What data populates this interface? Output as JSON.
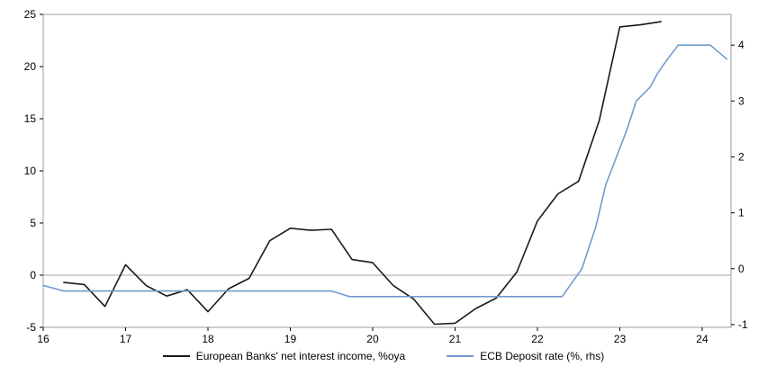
{
  "chart_data": {
    "type": "line",
    "title": "",
    "xlabel": "",
    "ylabel_left": "",
    "ylabel_right": "",
    "grid": false,
    "zero_line": true,
    "legend_position": "bottom",
    "x_axis": {
      "min": 16,
      "max": 24.35,
      "ticks": [
        16,
        17,
        18,
        19,
        20,
        21,
        22,
        23,
        24
      ]
    },
    "left_axis": {
      "min": -5,
      "max": 25,
      "ticks": [
        -5,
        0,
        5,
        10,
        15,
        20,
        25
      ]
    },
    "right_axis": {
      "min": -1.05,
      "max": 4.55,
      "ticks": [
        -1,
        0,
        1,
        2,
        3,
        4
      ]
    },
    "series": [
      {
        "name": "European Banks' net interest income, %oya",
        "axis": "left",
        "color": "#1a1a1a",
        "width": 1.6,
        "x": [
          16.25,
          16.5,
          16.75,
          17.0,
          17.25,
          17.5,
          17.75,
          18.0,
          18.25,
          18.5,
          18.75,
          19.0,
          19.25,
          19.5,
          19.75,
          20.0,
          20.25,
          20.5,
          20.75,
          21.0,
          21.25,
          21.5,
          21.75,
          22.0,
          22.25,
          22.5,
          22.75,
          23.0,
          23.25,
          23.5
        ],
        "y": [
          -0.7,
          -0.9,
          -3.0,
          1.0,
          -1.0,
          -2.0,
          -1.4,
          -3.5,
          -1.3,
          -0.3,
          3.3,
          4.5,
          4.3,
          4.4,
          1.5,
          1.2,
          -1.0,
          -2.3,
          -4.7,
          -4.6,
          -3.2,
          -2.2,
          0.3,
          5.2,
          7.8,
          9.0,
          14.8,
          23.8,
          24.0,
          24.3
        ]
      },
      {
        "name": "ECB Deposit rate (%, rhs)",
        "axis": "right",
        "color": "#6f9bcd",
        "width": 1.6,
        "x": [
          16.0,
          16.25,
          19.5,
          19.72,
          22.3,
          22.54,
          22.71,
          22.83,
          22.96,
          23.09,
          23.2,
          23.37,
          23.46,
          23.58,
          23.71,
          24.1,
          24.3
        ],
        "y": [
          -0.3,
          -0.4,
          -0.4,
          -0.5,
          -0.5,
          0.0,
          0.75,
          1.5,
          2.0,
          2.5,
          3.0,
          3.25,
          3.5,
          3.75,
          4.0,
          4.0,
          3.75
        ]
      }
    ]
  },
  "legend": {
    "items": [
      {
        "label": "European Banks' net interest income, %oya",
        "color": "#1a1a1a"
      },
      {
        "label": "ECB Deposit rate (%, rhs)",
        "color": "#6f9bcd"
      }
    ]
  },
  "colors": {
    "border": "#9b9b9b",
    "zero_line": "#a6a6a6",
    "tick": "#000000",
    "background": "#ffffff"
  }
}
